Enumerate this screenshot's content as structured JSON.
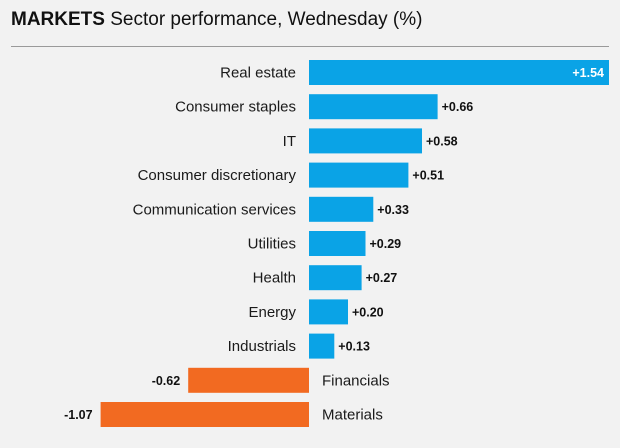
{
  "header": {
    "kicker": "MARKETS",
    "title": "Sector performance, Wednesday (%)"
  },
  "colors": {
    "positive": "#0aa3e6",
    "negative": "#f26a21",
    "background": "#f2f2f2",
    "rule": "#9a9a9a"
  },
  "chart_data": {
    "type": "bar",
    "orientation": "horizontal",
    "title": "Sector performance, Wednesday (%)",
    "categories": [
      "Real estate",
      "Consumer staples",
      "IT",
      "Consumer discretionary",
      "Communication services",
      "Utilities",
      "Health",
      "Energy",
      "Industrials",
      "Financials",
      "Materials"
    ],
    "values": [
      1.54,
      0.66,
      0.58,
      0.51,
      0.33,
      0.29,
      0.27,
      0.2,
      0.13,
      -0.62,
      -1.07
    ],
    "value_labels": [
      "+1.54",
      "+0.66",
      "+0.58",
      "+0.51",
      "+0.33",
      "+0.29",
      "+0.27",
      "+0.20",
      "+0.13",
      "-0.62",
      "-1.07"
    ],
    "xlim": [
      -1.07,
      1.54
    ],
    "grid": false,
    "legend": "none"
  }
}
